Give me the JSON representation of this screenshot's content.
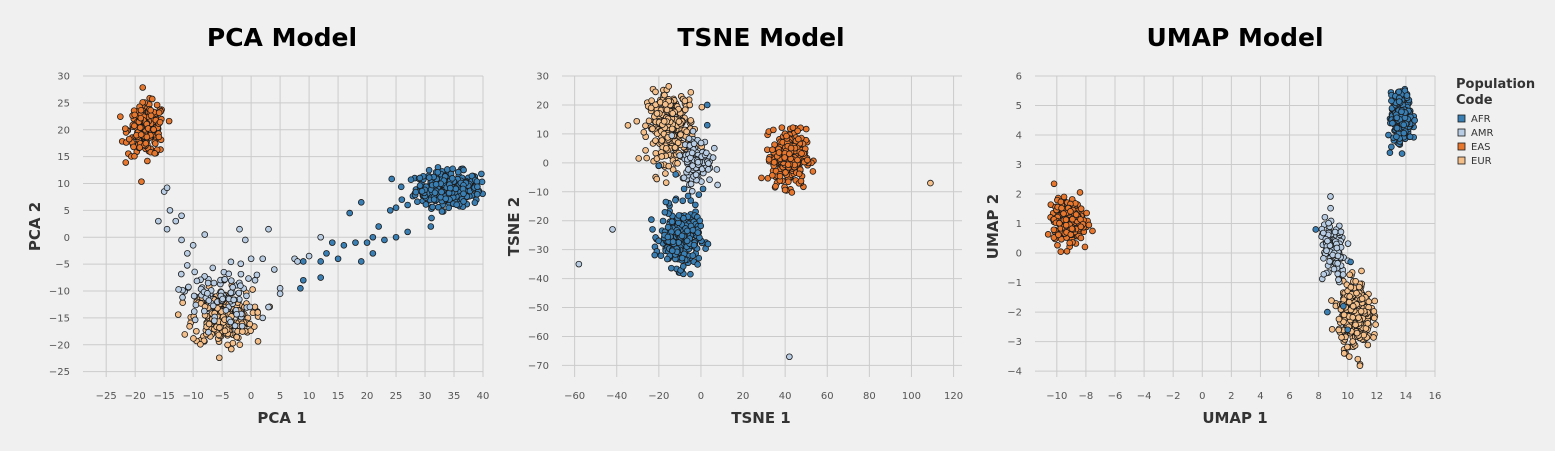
{
  "colors": {
    "background": "#f0f0f0",
    "grid": "#cbcbcb",
    "marker_edge": "#1a1a1a"
  },
  "legend": {
    "title_line1": "Population",
    "title_line2": "Code",
    "entries": [
      {
        "code": "AFR",
        "color": "#3a7fb4"
      },
      {
        "code": "AMR",
        "color": "#b8cde3"
      },
      {
        "code": "EAS",
        "color": "#e8772e"
      },
      {
        "code": "EUR",
        "color": "#f5bf8a"
      }
    ]
  },
  "chart_data": [
    {
      "type": "scatter",
      "title": "PCA Model",
      "xlabel": "PCA 1",
      "ylabel": "PCA 2",
      "xlim": [
        -29,
        40
      ],
      "ylim": [
        -26,
        30
      ],
      "xticks": [
        -25,
        -20,
        -15,
        -10,
        -5,
        0,
        5,
        10,
        15,
        20,
        25,
        30,
        35,
        40
      ],
      "yticks": [
        -25,
        -20,
        -15,
        -10,
        -5,
        0,
        5,
        10,
        15,
        20,
        25,
        30
      ],
      "grid": true,
      "clusters": [
        {
          "population": "AFR",
          "center": [
            34,
            9
          ],
          "spread": [
            2.8,
            1.6
          ],
          "n": 320
        },
        {
          "population": "EAS",
          "center": [
            -18,
            20
          ],
          "spread": [
            1.6,
            2.4
          ],
          "n": 210
        },
        {
          "population": "EUR",
          "center": [
            -5,
            -15
          ],
          "spread": [
            2.6,
            2.6
          ],
          "n": 240
        },
        {
          "population": "AMR",
          "center": [
            -6,
            -11
          ],
          "spread": [
            3.0,
            3.0
          ],
          "n": 90
        }
      ],
      "points": [
        {
          "population": "AMR",
          "x": -15,
          "y": 8.5
        },
        {
          "population": "AMR",
          "x": -14.5,
          "y": 9.2
        },
        {
          "population": "AMR",
          "x": -14,
          "y": 5
        },
        {
          "population": "AMR",
          "x": -16,
          "y": 3
        },
        {
          "population": "AMR",
          "x": -14.5,
          "y": 1.5
        },
        {
          "population": "AMR",
          "x": -12,
          "y": 4
        },
        {
          "population": "AMR",
          "x": -13,
          "y": 3
        },
        {
          "population": "AMR",
          "x": -12,
          "y": -0.5
        },
        {
          "population": "AMR",
          "x": -10,
          "y": -1.5
        },
        {
          "population": "AMR",
          "x": -11,
          "y": -3
        },
        {
          "population": "AMR",
          "x": -8,
          "y": 0.5
        },
        {
          "population": "AMR",
          "x": -2,
          "y": 1.5
        },
        {
          "population": "AMR",
          "x": -1,
          "y": -0.5
        },
        {
          "population": "AMR",
          "x": 0,
          "y": -4
        },
        {
          "population": "AMR",
          "x": 1,
          "y": -7
        },
        {
          "population": "AMR",
          "x": 2,
          "y": -4
        },
        {
          "population": "AMR",
          "x": 3,
          "y": 1.5
        },
        {
          "population": "AMR",
          "x": 4,
          "y": -6
        },
        {
          "population": "AMR",
          "x": 3,
          "y": -13
        },
        {
          "population": "AMR",
          "x": 2,
          "y": -15
        },
        {
          "population": "AMR",
          "x": 5,
          "y": -9.5
        },
        {
          "population": "AMR",
          "x": 5,
          "y": -10.5
        },
        {
          "population": "AMR",
          "x": 7.5,
          "y": -4
        },
        {
          "population": "AMR",
          "x": 8,
          "y": -4.5
        },
        {
          "population": "AMR",
          "x": 10,
          "y": -3.5
        },
        {
          "population": "AFR",
          "x": 9,
          "y": -4.5
        },
        {
          "population": "AFR",
          "x": 8.5,
          "y": -9.5
        },
        {
          "population": "AFR",
          "x": 9,
          "y": -8
        },
        {
          "population": "AFR",
          "x": 12,
          "y": -7.5
        },
        {
          "population": "AFR",
          "x": 12,
          "y": -4.5
        },
        {
          "population": "AFR",
          "x": 13,
          "y": -3
        },
        {
          "population": "AMR",
          "x": 12,
          "y": 0
        },
        {
          "population": "AFR",
          "x": 14,
          "y": -1
        },
        {
          "population": "AFR",
          "x": 15,
          "y": -4
        },
        {
          "population": "AFR",
          "x": 16,
          "y": -1.5
        },
        {
          "population": "AFR",
          "x": 17,
          "y": 4.5
        },
        {
          "population": "AFR",
          "x": 18,
          "y": -1
        },
        {
          "population": "AFR",
          "x": 19,
          "y": 6.5
        },
        {
          "population": "AFR",
          "x": 19,
          "y": -4.5
        },
        {
          "population": "AFR",
          "x": 20,
          "y": -1
        },
        {
          "population": "AFR",
          "x": 21,
          "y": 0
        },
        {
          "population": "AFR",
          "x": 21,
          "y": -3
        },
        {
          "population": "AFR",
          "x": 22,
          "y": 2
        },
        {
          "population": "AFR",
          "x": 23,
          "y": -0.5
        },
        {
          "population": "AFR",
          "x": 24,
          "y": 5
        },
        {
          "population": "AFR",
          "x": 25,
          "y": 5.5
        },
        {
          "population": "AFR",
          "x": 25,
          "y": 0
        },
        {
          "population": "AFR",
          "x": 26,
          "y": 7
        },
        {
          "population": "AFR",
          "x": 27,
          "y": 1
        },
        {
          "population": "AFR",
          "x": 27,
          "y": 6
        },
        {
          "population": "AFR",
          "x": 31,
          "y": 2
        },
        {
          "population": "AFR",
          "x": 39,
          "y": 8
        }
      ]
    },
    {
      "type": "scatter",
      "title": "TSNE Model",
      "xlabel": "TSNE 1",
      "ylabel": "TSNE 2",
      "xlim": [
        -66,
        124
      ],
      "ylim": [
        -74,
        30
      ],
      "xticks": [
        -60,
        -40,
        -20,
        0,
        20,
        40,
        60,
        80,
        100,
        120
      ],
      "yticks": [
        -70,
        -60,
        -50,
        -40,
        -30,
        -20,
        -10,
        0,
        10,
        20,
        30
      ],
      "grid": true,
      "clusters": [
        {
          "population": "EUR",
          "center": [
            -14,
            12
          ],
          "spread": [
            5.5,
            6.0
          ],
          "n": 300
        },
        {
          "population": "AFR",
          "center": [
            -10,
            -26
          ],
          "spread": [
            4.5,
            5.0
          ],
          "n": 300
        },
        {
          "population": "EAS",
          "center": [
            42,
            2
          ],
          "spread": [
            4.0,
            4.8
          ],
          "n": 320
        },
        {
          "population": "AMR",
          "center": [
            -2,
            1
          ],
          "spread": [
            3.5,
            4.0
          ],
          "n": 120
        }
      ],
      "points": [
        {
          "population": "AMR",
          "x": -58,
          "y": -35
        },
        {
          "population": "AMR",
          "x": -42,
          "y": -23
        },
        {
          "population": "EUR",
          "x": 109,
          "y": -7
        },
        {
          "population": "AMR",
          "x": 42,
          "y": -67
        },
        {
          "population": "AFR",
          "x": -1,
          "y": -11
        },
        {
          "population": "AFR",
          "x": 1,
          "y": -9
        },
        {
          "population": "AFR",
          "x": 3,
          "y": 20
        },
        {
          "population": "AFR",
          "x": 3,
          "y": 13
        },
        {
          "population": "AFR",
          "x": -20,
          "y": -1
        },
        {
          "population": "AFR",
          "x": -8,
          "y": -9
        },
        {
          "population": "AFR",
          "x": -23,
          "y": -23
        },
        {
          "population": "AFR",
          "x": -12,
          "y": -4
        }
      ]
    },
    {
      "type": "scatter",
      "title": "UMAP Model",
      "xlabel": "UMAP 1",
      "ylabel": "UMAP 2",
      "xlim": [
        -11.5,
        16
      ],
      "ylim": [
        -4.2,
        6
      ],
      "xticks": [
        -10,
        -8,
        -6,
        -4,
        -2,
        0,
        2,
        4,
        6,
        8,
        10,
        12,
        14,
        16
      ],
      "yticks": [
        -4,
        -3,
        -2,
        -1,
        0,
        1,
        2,
        3,
        4,
        5,
        6
      ],
      "grid": true,
      "clusters": [
        {
          "population": "EAS",
          "center": [
            -9.2,
            1.1
          ],
          "spread": [
            0.5,
            0.35
          ],
          "n": 320
        },
        {
          "population": "AFR",
          "center": [
            13.7,
            4.6
          ],
          "spread": [
            0.35,
            0.4
          ],
          "n": 300
        },
        {
          "population": "EUR",
          "center": [
            10.5,
            -2.1
          ],
          "spread": [
            0.55,
            0.55
          ],
          "n": 320
        },
        {
          "population": "AMR",
          "center": [
            9.0,
            0.1
          ],
          "spread": [
            0.45,
            0.55
          ],
          "n": 110
        }
      ],
      "points": [
        {
          "population": "AFR",
          "x": 12.9,
          "y": 3.4
        },
        {
          "population": "AFR",
          "x": 13.0,
          "y": 3.6
        },
        {
          "population": "AFR",
          "x": 12.8,
          "y": 4.0
        },
        {
          "population": "AFR",
          "x": 7.8,
          "y": 0.8
        },
        {
          "population": "AFR",
          "x": 10.2,
          "y": -0.3
        },
        {
          "population": "AFR",
          "x": 9.7,
          "y": -1.8
        },
        {
          "population": "AFR",
          "x": 8.6,
          "y": -2.0
        },
        {
          "population": "AFR",
          "x": 10.0,
          "y": -2.6
        }
      ]
    }
  ]
}
